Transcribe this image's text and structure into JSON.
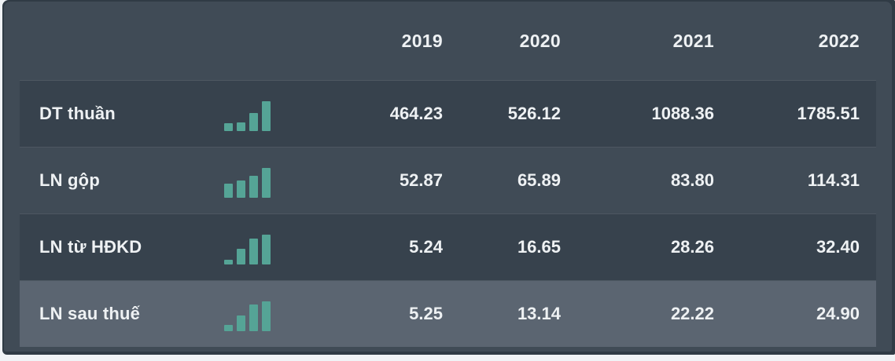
{
  "table": {
    "header": {
      "years": [
        "2019",
        "2020",
        "2021",
        "2022"
      ]
    },
    "rows": [
      {
        "label": "DT thuần",
        "values": [
          "464.23",
          "526.12",
          "1088.36",
          "1785.51"
        ],
        "numeric": [
          464.23,
          526.12,
          1088.36,
          1785.51
        ],
        "highlighted": false
      },
      {
        "label": "LN gộp",
        "values": [
          "52.87",
          "65.89",
          "83.80",
          "114.31"
        ],
        "numeric": [
          52.87,
          65.89,
          83.8,
          114.31
        ],
        "highlighted": false
      },
      {
        "label": "LN từ HĐKD",
        "values": [
          "5.24",
          "16.65",
          "28.26",
          "32.40"
        ],
        "numeric": [
          5.24,
          16.65,
          28.26,
          32.4
        ],
        "highlighted": false
      },
      {
        "label": "LN sau thuế",
        "values": [
          "5.25",
          "13.14",
          "22.22",
          "24.90"
        ],
        "numeric": [
          5.25,
          13.14,
          22.22,
          24.9
        ],
        "highlighted": true
      }
    ]
  },
  "icons": {
    "row_trend_icon": "mini-bar-chart-icon"
  },
  "colors": {
    "page_bg": "#f0f3f6",
    "frame": "#303b45",
    "panel_bg": "#404b56",
    "row_alt_bg": "#37424d",
    "row_highlight_bg": "#5b6571",
    "divider": "#4d5761",
    "bar": "#55a496",
    "text": "#eef1f3"
  }
}
